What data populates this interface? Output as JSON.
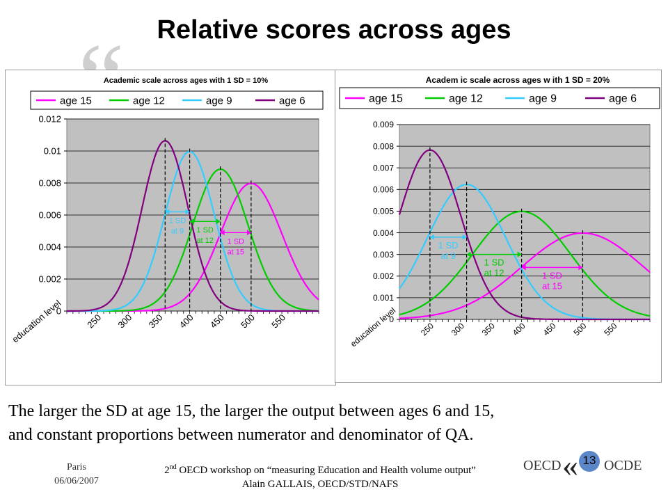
{
  "slide": {
    "title": "Relative scores across ages",
    "caption_line1": "The larger the SD at age 15, the larger the output between ages 6 and 15,",
    "caption_line2": "and constant proportions between numerator and denominator of QA.",
    "footer_place": "Paris",
    "footer_date": "06/06/2007",
    "footer_workshop_num": "2",
    "footer_workshop_sup": "nd",
    "footer_workshop_rest": " OECD workshop on “measuring Education and Health volume output”",
    "footer_author": "Alain GALLAIS, OECD/STD/NAFS",
    "logo_left": "OECD",
    "logo_right": "OCDE",
    "page_number": "13"
  },
  "chart_data": [
    {
      "type": "line",
      "title": "Academic scale across ages with 1 SD = 10%",
      "xlabel": "education level",
      "ylabel": "",
      "xlim": [
        200,
        610
      ],
      "ylim": [
        0,
        0.012
      ],
      "x_ticks": [
        "250",
        "300",
        "350",
        "400",
        "450",
        "500",
        "550"
      ],
      "y_ticks": [
        "0",
        "0.002",
        "0.004",
        "0.006",
        "0.008",
        "0.01",
        "0.012"
      ],
      "grid": true,
      "legend": "top",
      "series": [
        {
          "name": "age 15",
          "color": "#ff00ff",
          "mean": 500,
          "sd": 50
        },
        {
          "name": "age 12",
          "color": "#00cc00",
          "mean": 450,
          "sd": 45
        },
        {
          "name": "age 9",
          "color": "#33ccff",
          "mean": 400,
          "sd": 40
        },
        {
          "name": "age 6",
          "color": "#800080",
          "mean": 360,
          "sd": 37.5
        }
      ],
      "annotations": [
        {
          "line1": "1 SD",
          "line2": "at 9",
          "color": "#33ccff",
          "from": 360,
          "to": 400,
          "y": 0.0062
        },
        {
          "line1": "1 SD",
          "line2": "at 12",
          "color": "#00cc00",
          "from": 400,
          "to": 450,
          "y": 0.0056
        },
        {
          "line1": "1 SD",
          "line2": "at 15",
          "color": "#ff00ff",
          "from": 450,
          "to": 500,
          "y": 0.0049
        }
      ]
    },
    {
      "type": "line",
      "title": "Academ ic scale across ages w ith 1 SD = 20%",
      "xlabel": "education level",
      "ylabel": "",
      "xlim": [
        200,
        610
      ],
      "ylim": [
        0,
        0.009
      ],
      "x_ticks": [
        "250",
        "300",
        "350",
        "400",
        "450",
        "500",
        "550"
      ],
      "y_ticks": [
        "0",
        "0.001",
        "0.002",
        "0.003",
        "0.004",
        "0.005",
        "0.006",
        "0.007",
        "0.008",
        "0.009"
      ],
      "grid": true,
      "legend": "top",
      "series": [
        {
          "name": "age 15",
          "color": "#ff00ff",
          "mean": 500,
          "sd": 100
        },
        {
          "name": "age 12",
          "color": "#00cc00",
          "mean": 400,
          "sd": 80
        },
        {
          "name": "age 9",
          "color": "#33ccff",
          "mean": 310,
          "sd": 64
        },
        {
          "name": "age 6",
          "color": "#800080",
          "mean": 250,
          "sd": 51
        }
      ],
      "annotations": [
        {
          "line1": "1 SD",
          "line2": "at 9",
          "color": "#33ccff",
          "from": 250,
          "to": 310,
          "y": 0.0038
        },
        {
          "line1": "1 SD",
          "line2": "at 12",
          "color": "#00cc00",
          "from": 310,
          "to": 400,
          "y": 0.003
        },
        {
          "line1": "1 SD",
          "line2": "at 15",
          "color": "#ff00ff",
          "from": 400,
          "to": 500,
          "y": 0.0024
        }
      ]
    }
  ]
}
